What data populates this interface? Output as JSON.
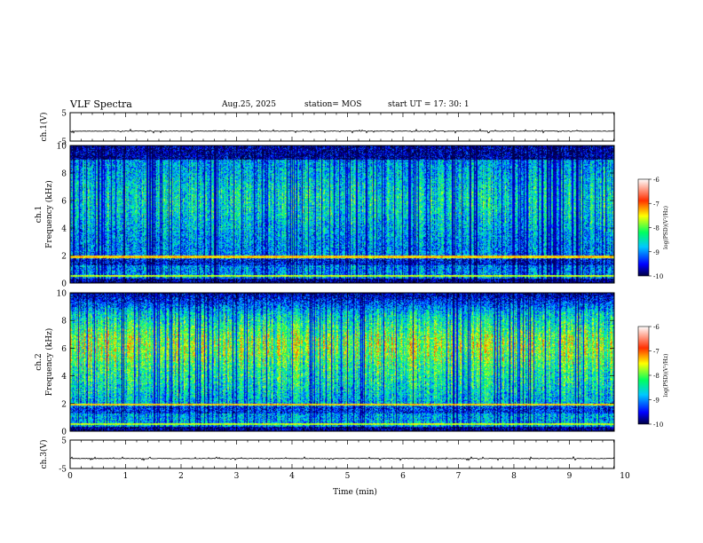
{
  "header": {
    "title": "VLF Spectra",
    "date": "Aug.25, 2025",
    "station": "station= MOS",
    "start": "start  UT  =    17: 30: 1"
  },
  "chart_data": [
    {
      "type": "line",
      "panel": "ch1-waveform",
      "ylabel": "ch.1(V)",
      "yticks": [
        "5",
        "-5"
      ],
      "ylim": [
        -5,
        5
      ],
      "approx_level": -1.5,
      "xlim": [
        0,
        10
      ]
    },
    {
      "type": "heatmap",
      "panel": "ch1-spectrogram",
      "ylabel": "ch.1\nFrequency (kHz)",
      "ylabel_top": "ch.1",
      "ylabel_bottom": "Frequency (kHz)",
      "yticks": [
        "0",
        "2",
        "4",
        "6",
        "8",
        "10"
      ],
      "ylim": [
        0,
        10
      ],
      "xlim": [
        0,
        10
      ],
      "colorbar": {
        "label": "log(PSD)(V²/Hz)",
        "ticks": [
          "-6",
          "-7",
          "-8",
          "-9",
          "-10"
        ],
        "range": [
          -10,
          -6
        ]
      },
      "seed": 11
    },
    {
      "type": "heatmap",
      "panel": "ch2-spectrogram",
      "ylabel": "ch.2\nFrequency (kHz)",
      "ylabel_top": "ch.2",
      "ylabel_bottom": "Frequency (kHz)",
      "yticks": [
        "0",
        "2",
        "4",
        "6",
        "8",
        "10"
      ],
      "ylim": [
        0,
        10
      ],
      "xlim": [
        0,
        10
      ],
      "colorbar": {
        "label": "log(PSD)(V²/Hz)",
        "ticks": [
          "-6",
          "-7",
          "-8",
          "-9",
          "-10"
        ],
        "range": [
          -10,
          -6
        ]
      },
      "seed": 29
    },
    {
      "type": "line",
      "panel": "ch3-waveform",
      "ylabel": "ch.3(V)",
      "yticks": [
        "5",
        "-5"
      ],
      "ylim": [
        -5,
        5
      ],
      "approx_level": -1.5,
      "xlim": [
        0,
        10
      ]
    }
  ],
  "xaxis": {
    "label": "Time  (min)",
    "ticks": [
      "0",
      "1",
      "2",
      "3",
      "4",
      "5",
      "6",
      "7",
      "8",
      "9",
      "10"
    ],
    "range": [
      0,
      10
    ]
  }
}
